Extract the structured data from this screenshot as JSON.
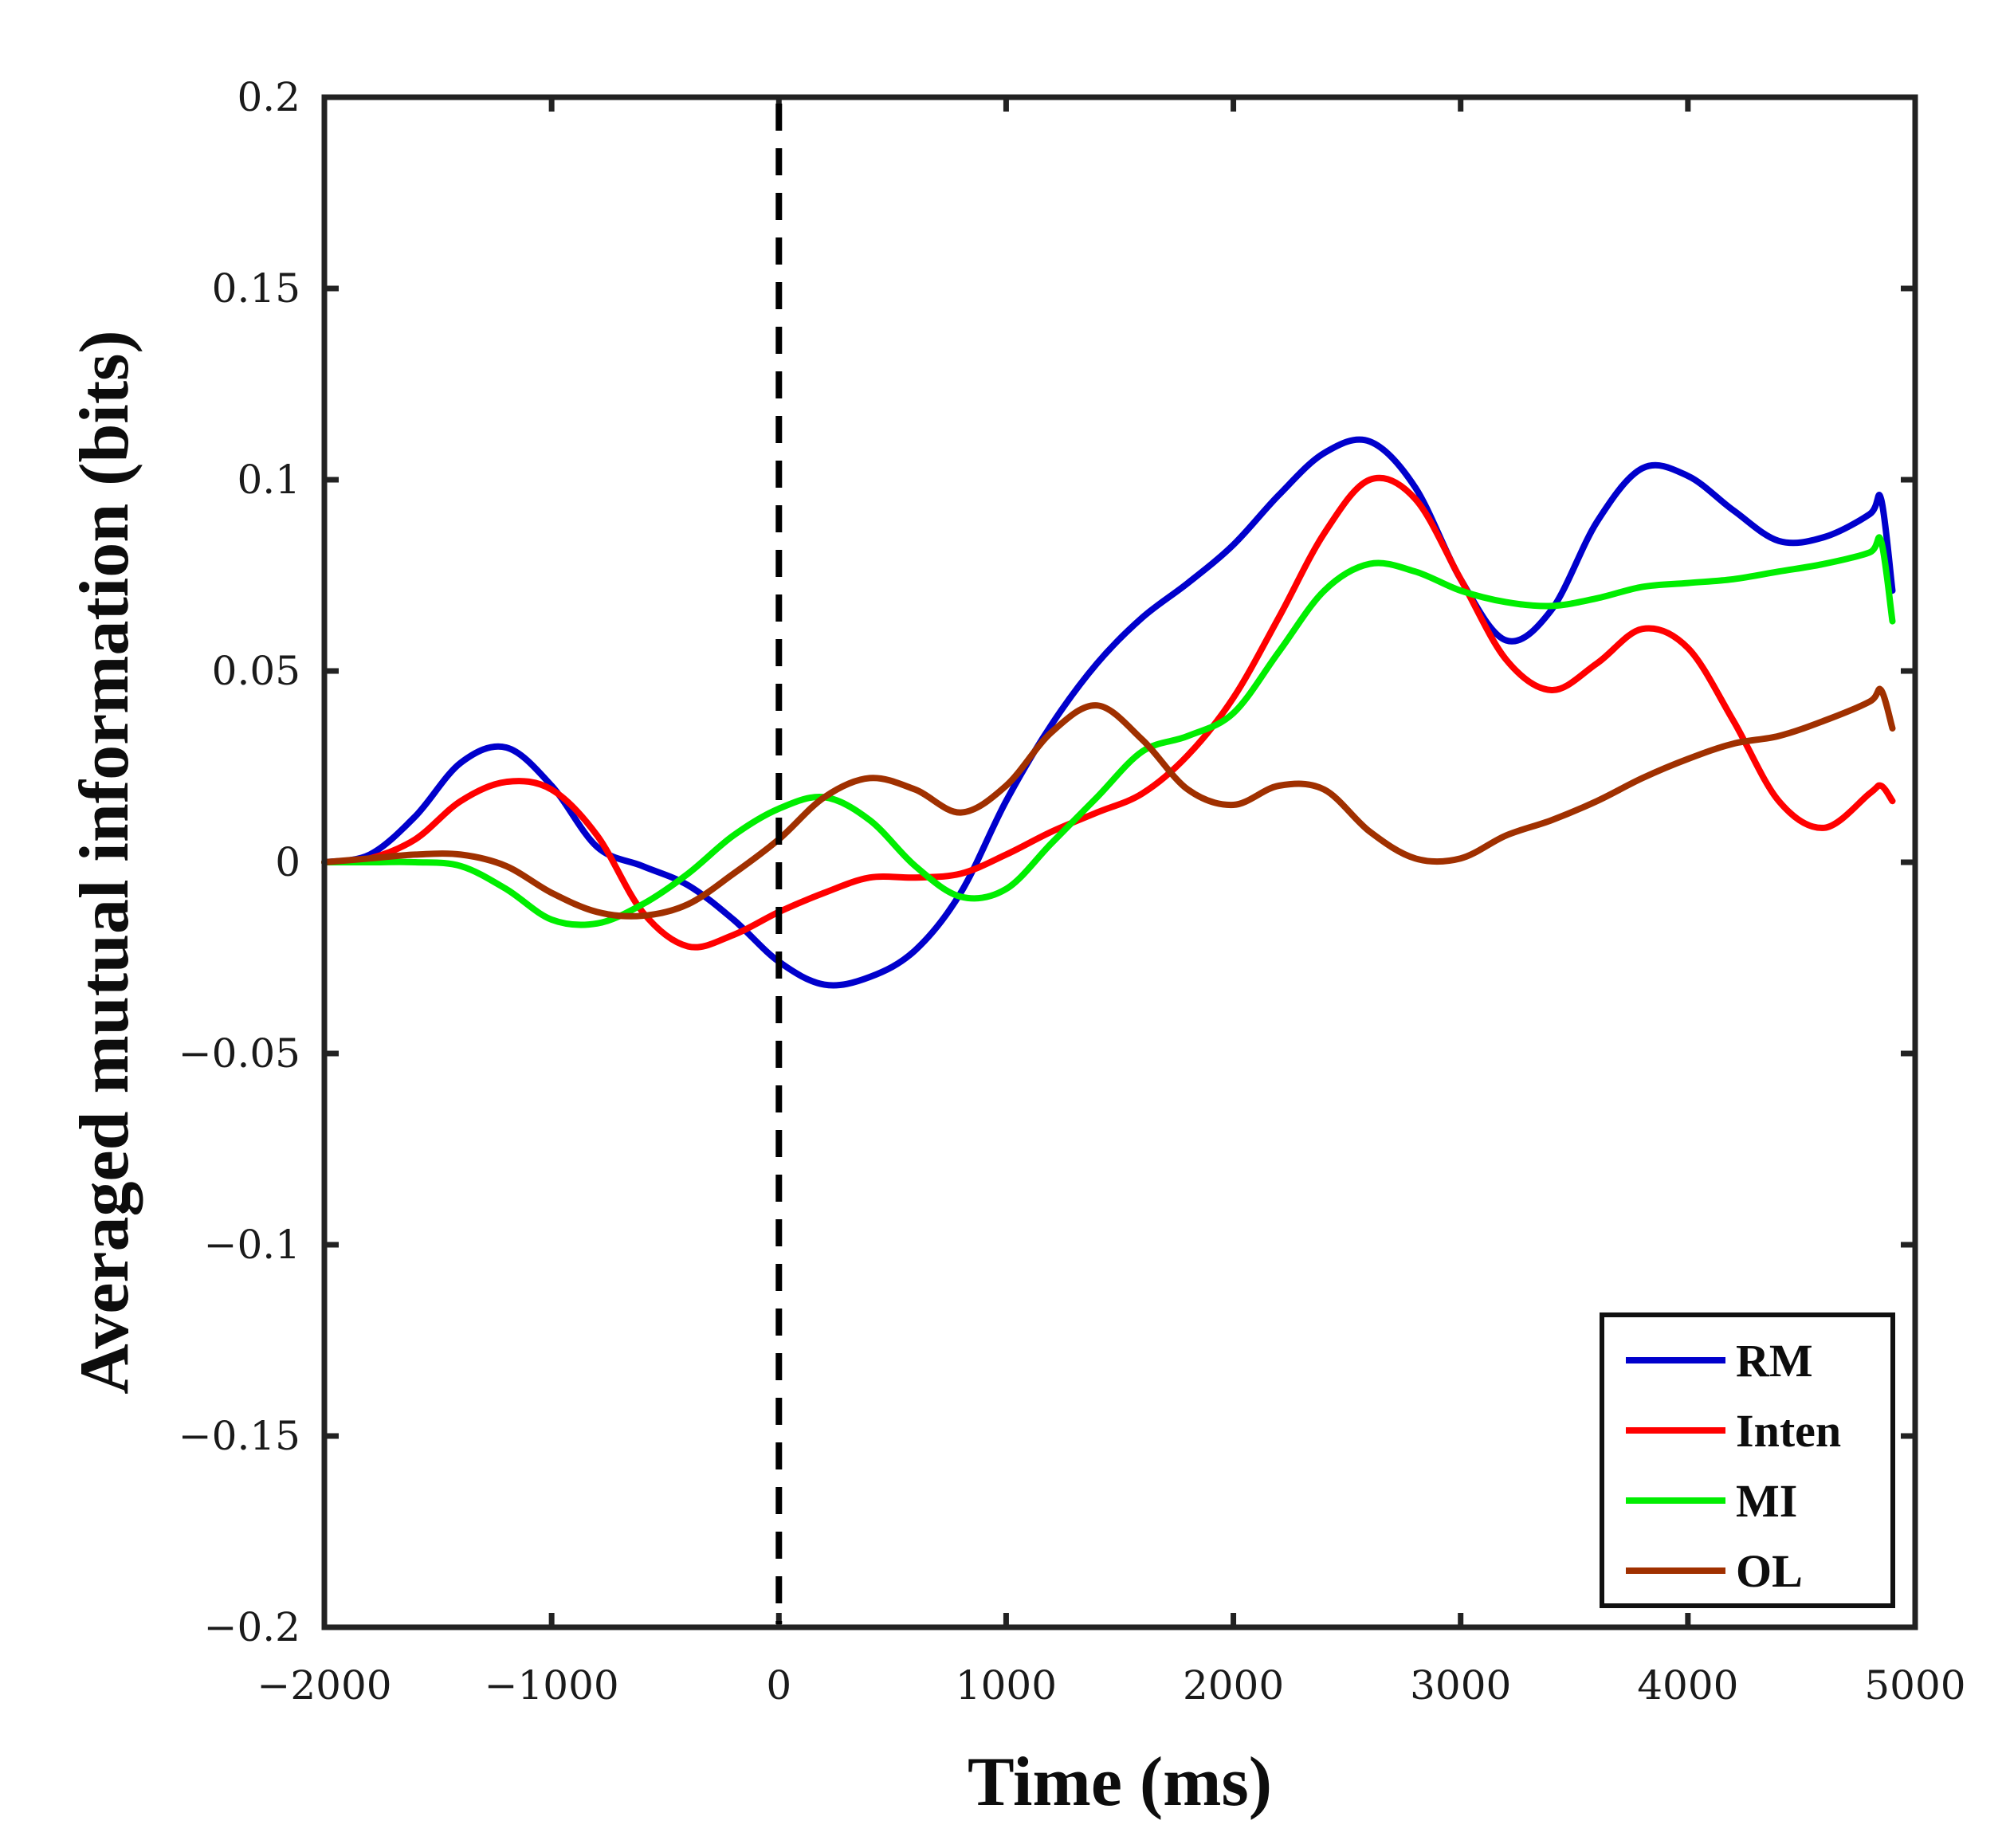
{
  "chart_data": {
    "type": "line",
    "title": "",
    "xlabel": "Time (ms)",
    "ylabel": "Averaged mutual information (bits)",
    "xlim": [
      -2000,
      5000
    ],
    "ylim": [
      -0.2,
      0.2
    ],
    "xticks": [
      -2000,
      -1000,
      0,
      1000,
      2000,
      3000,
      4000,
      5000
    ],
    "xtick_labels": [
      "−2000",
      "−1000",
      "0",
      "1000",
      "2000",
      "3000",
      "4000",
      "5000"
    ],
    "yticks": [
      -0.2,
      -0.15,
      -0.1,
      -0.05,
      0,
      0.05,
      0.1,
      0.15,
      0.2
    ],
    "ytick_labels": [
      "−0.2",
      "−0.15",
      "−0.1",
      "−0.05",
      "0",
      "0.05",
      "0.1",
      "0.15",
      "0.2"
    ],
    "grid": false,
    "legend_position": "bottom-right",
    "vline": {
      "x": 0,
      "style": "dashed",
      "color": "#000000"
    },
    "series": [
      {
        "name": "RM",
        "color": "#0000cc",
        "x": [
          -2000,
          -1800,
          -1600,
          -1400,
          -1200,
          -1000,
          -800,
          -600,
          -400,
          -200,
          0,
          200,
          400,
          600,
          800,
          1000,
          1200,
          1400,
          1600,
          1800,
          2000,
          2200,
          2400,
          2600,
          2800,
          3000,
          3200,
          3400,
          3600,
          3800,
          4000,
          4200,
          4400,
          4600,
          4800,
          4850,
          4900
        ],
        "values": [
          0,
          0.002,
          0.012,
          0.026,
          0.03,
          0.02,
          0.004,
          -0.001,
          -0.006,
          -0.015,
          -0.026,
          -0.032,
          -0.03,
          -0.023,
          -0.008,
          0.016,
          0.036,
          0.052,
          0.064,
          0.073,
          0.083,
          0.096,
          0.107,
          0.11,
          0.098,
          0.074,
          0.058,
          0.066,
          0.089,
          0.103,
          0.101,
          0.092,
          0.084,
          0.085,
          0.091,
          0.095,
          0.071
        ]
      },
      {
        "name": "Inten",
        "color": "#ff0000",
        "x": [
          -2000,
          -1800,
          -1600,
          -1400,
          -1200,
          -1000,
          -800,
          -600,
          -400,
          -200,
          0,
          200,
          400,
          600,
          800,
          1000,
          1200,
          1400,
          1600,
          1800,
          2000,
          2200,
          2400,
          2600,
          2800,
          3000,
          3200,
          3400,
          3600,
          3800,
          4000,
          4200,
          4400,
          4600,
          4800,
          4850,
          4900
        ],
        "values": [
          0,
          0.001,
          0.006,
          0.016,
          0.021,
          0.019,
          0.007,
          -0.013,
          -0.022,
          -0.019,
          -0.013,
          -0.008,
          -0.004,
          -0.004,
          -0.003,
          0.002,
          0.008,
          0.013,
          0.018,
          0.028,
          0.043,
          0.064,
          0.086,
          0.1,
          0.095,
          0.074,
          0.053,
          0.045,
          0.052,
          0.061,
          0.056,
          0.037,
          0.016,
          0.009,
          0.018,
          0.02,
          0.016
        ]
      },
      {
        "name": "MI",
        "color": "#00ee00",
        "x": [
          -2000,
          -1800,
          -1600,
          -1400,
          -1200,
          -1000,
          -800,
          -600,
          -400,
          -200,
          0,
          200,
          400,
          600,
          800,
          1000,
          1200,
          1400,
          1600,
          1800,
          2000,
          2200,
          2400,
          2600,
          2800,
          3000,
          3200,
          3400,
          3600,
          3800,
          4000,
          4200,
          4400,
          4600,
          4800,
          4850,
          4900
        ],
        "values": [
          0,
          0,
          0,
          -0.001,
          -0.007,
          -0.015,
          -0.016,
          -0.011,
          -0.003,
          0.007,
          0.014,
          0.017,
          0.011,
          -0.001,
          -0.009,
          -0.007,
          0.005,
          0.017,
          0.029,
          0.033,
          0.039,
          0.055,
          0.071,
          0.078,
          0.076,
          0.071,
          0.068,
          0.067,
          0.069,
          0.072,
          0.073,
          0.074,
          0.076,
          0.078,
          0.081,
          0.084,
          0.063
        ]
      },
      {
        "name": "OL",
        "color": "#a03000",
        "x": [
          -2000,
          -1800,
          -1600,
          -1400,
          -1200,
          -1000,
          -800,
          -600,
          -400,
          -200,
          0,
          200,
          400,
          600,
          800,
          1000,
          1200,
          1400,
          1600,
          1800,
          2000,
          2200,
          2400,
          2600,
          2800,
          3000,
          3200,
          3400,
          3600,
          3800,
          4000,
          4200,
          4400,
          4600,
          4800,
          4850,
          4900
        ],
        "values": [
          0,
          0.001,
          0.002,
          0.002,
          -0.001,
          -0.008,
          -0.013,
          -0.014,
          -0.011,
          -0.003,
          0.006,
          0.017,
          0.022,
          0.019,
          0.013,
          0.02,
          0.034,
          0.041,
          0.032,
          0.019,
          0.015,
          0.02,
          0.019,
          0.008,
          0.001,
          0.001,
          0.007,
          0.011,
          0.016,
          0.022,
          0.027,
          0.031,
          0.033,
          0.037,
          0.042,
          0.045,
          0.035
        ]
      }
    ]
  }
}
